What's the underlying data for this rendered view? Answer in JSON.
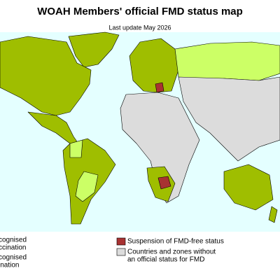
{
  "title": "WOAH Members' official FMD status map",
  "subtitle": "Last update May 2026",
  "legend": [
    {
      "lines": [
        "cognised",
        "ccination"
      ]
    },
    {
      "lines": [
        "cognised",
        "ination"
      ]
    },
    {
      "lines": [
        "Suspension of FMD-free status"
      ],
      "color": "#a83232"
    },
    {
      "lines": [
        "Countries and zones without",
        "an official status for FMD"
      ],
      "color": "#dcdcdc"
    }
  ]
}
